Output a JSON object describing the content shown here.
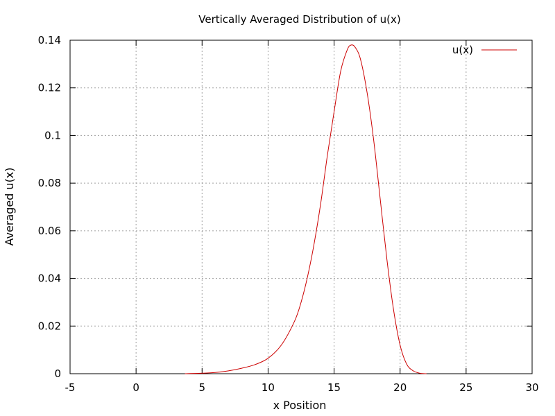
{
  "chart_data": {
    "type": "line",
    "title": "Vertically Averaged Distribution of u(x)",
    "xlabel": "x Position",
    "ylabel": "Averaged u(x)",
    "xlim": [
      -5,
      30
    ],
    "ylim": [
      0,
      0.14
    ],
    "xticks": [
      -5,
      0,
      5,
      10,
      15,
      20,
      25,
      30
    ],
    "yticks": [
      0,
      0.02,
      0.04,
      0.06,
      0.08,
      0.1,
      0.12,
      0.14
    ],
    "xtick_labels": [
      "-5",
      "0",
      "5",
      "10",
      "15",
      "20",
      "25",
      "30"
    ],
    "ytick_labels": [
      "0",
      "0.02",
      "0.04",
      "0.06",
      "0.08",
      "0.1",
      "0.12",
      "0.14"
    ],
    "grid": true,
    "legend_position": "top-right",
    "series": [
      {
        "name": "u(x)",
        "color": "#cc0000",
        "x": [
          3.7,
          5,
          6,
          7,
          8,
          9,
          10,
          11,
          12,
          12.5,
          13,
          13.5,
          14,
          14.5,
          15,
          15.5,
          16,
          16.3,
          16.6,
          17,
          17.5,
          18,
          18.5,
          19,
          19.5,
          20,
          20.5,
          21,
          21.5,
          22
        ],
        "y": [
          0.0,
          0.0002,
          0.0005,
          0.0012,
          0.0023,
          0.0038,
          0.0065,
          0.012,
          0.022,
          0.03,
          0.041,
          0.055,
          0.072,
          0.092,
          0.11,
          0.127,
          0.136,
          0.138,
          0.137,
          0.132,
          0.118,
          0.098,
          0.073,
          0.048,
          0.027,
          0.012,
          0.004,
          0.0012,
          0.0002,
          0.0
        ]
      }
    ]
  }
}
